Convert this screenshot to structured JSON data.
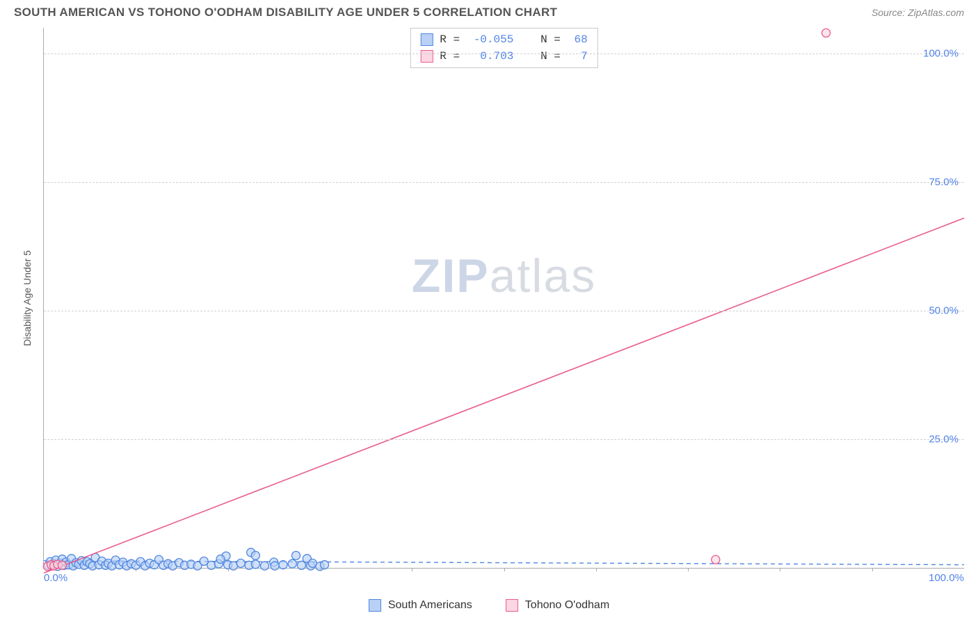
{
  "header": {
    "title": "SOUTH AMERICAN VS TOHONO O'ODHAM DISABILITY AGE UNDER 5 CORRELATION CHART",
    "source_prefix": "Source: ",
    "source_name": "ZipAtlas.com"
  },
  "chart": {
    "type": "scatter",
    "y_axis_title": "Disability Age Under 5",
    "xlim": [
      0,
      100
    ],
    "ylim": [
      0,
      105
    ],
    "x_origin_label": "0.0%",
    "x_end_label": "100.0%",
    "y_ticks": [
      {
        "v": 25,
        "label": "25.0%"
      },
      {
        "v": 50,
        "label": "50.0%"
      },
      {
        "v": 75,
        "label": "75.0%"
      },
      {
        "v": 100,
        "label": "100.0%"
      }
    ],
    "x_minor_ticks": [
      10,
      20,
      30,
      40,
      50,
      60,
      70,
      80,
      90
    ],
    "grid_color": "#d0d0d0",
    "background_color": "#ffffff",
    "axis_color": "#aaaaaa",
    "tick_label_color": "#5083e8",
    "tick_label_fontsize": 15,
    "marker_radius": 6,
    "marker_stroke_width": 1.3,
    "series": [
      {
        "name": "South Americans",
        "fill": "#b9d1f6",
        "stroke": "#4f86e0",
        "fit": {
          "x1": 0,
          "y1": 1.4,
          "x2": 100,
          "y2": 0.6,
          "dash": "6 5",
          "width": 1.4
        },
        "points": [
          [
            0.5,
            0.5
          ],
          [
            0.7,
            1.2
          ],
          [
            0.9,
            0.4
          ],
          [
            1.1,
            0.8
          ],
          [
            1.3,
            1.5
          ],
          [
            1.5,
            0.3
          ],
          [
            1.8,
            0.9
          ],
          [
            2.0,
            1.7
          ],
          [
            2.2,
            0.5
          ],
          [
            2.4,
            1.1
          ],
          [
            2.7,
            0.6
          ],
          [
            3.0,
            1.8
          ],
          [
            3.2,
            0.4
          ],
          [
            3.5,
            1.0
          ],
          [
            3.8,
            0.7
          ],
          [
            4.1,
            1.4
          ],
          [
            4.4,
            0.5
          ],
          [
            4.7,
            1.2
          ],
          [
            5.0,
            0.8
          ],
          [
            5.3,
            0.4
          ],
          [
            5.6,
            2.0
          ],
          [
            6.0,
            0.6
          ],
          [
            6.3,
            1.3
          ],
          [
            6.7,
            0.5
          ],
          [
            7.0,
            0.9
          ],
          [
            7.4,
            0.4
          ],
          [
            7.8,
            1.5
          ],
          [
            8.2,
            0.6
          ],
          [
            8.6,
            1.1
          ],
          [
            9.0,
            0.4
          ],
          [
            9.5,
            0.8
          ],
          [
            10.0,
            0.5
          ],
          [
            10.5,
            1.2
          ],
          [
            11.0,
            0.4
          ],
          [
            11.5,
            0.9
          ],
          [
            12.0,
            0.6
          ],
          [
            12.5,
            1.6
          ],
          [
            13.0,
            0.5
          ],
          [
            13.5,
            0.8
          ],
          [
            14.0,
            0.4
          ],
          [
            14.7,
            1.0
          ],
          [
            15.3,
            0.5
          ],
          [
            16.0,
            0.7
          ],
          [
            16.7,
            0.4
          ],
          [
            17.4,
            1.3
          ],
          [
            18.2,
            0.5
          ],
          [
            19.0,
            0.8
          ],
          [
            19.8,
            2.3
          ],
          [
            20.0,
            0.6
          ],
          [
            20.6,
            0.4
          ],
          [
            21.4,
            0.9
          ],
          [
            22.3,
            0.5
          ],
          [
            22.5,
            3.0
          ],
          [
            23.0,
            0.7
          ],
          [
            24.0,
            0.4
          ],
          [
            25.0,
            1.1
          ],
          [
            25.1,
            0.4
          ],
          [
            26.0,
            0.6
          ],
          [
            27.0,
            0.8
          ],
          [
            27.4,
            2.4
          ],
          [
            28.0,
            0.5
          ],
          [
            28.6,
            1.8
          ],
          [
            29.0,
            0.4
          ],
          [
            29.2,
            0.9
          ],
          [
            30.0,
            0.3
          ],
          [
            30.5,
            0.6
          ],
          [
            19.2,
            1.7
          ],
          [
            23.0,
            2.4
          ]
        ]
      },
      {
        "name": "Tohono O'odham",
        "fill": "#fcd7e2",
        "stroke": "#e85b8c",
        "fit": {
          "x1": 0,
          "y1": -1.0,
          "x2": 100,
          "y2": 68.0,
          "dash": "",
          "width": 1.6
        },
        "points": [
          [
            0.4,
            0.3
          ],
          [
            0.8,
            0.6
          ],
          [
            1.1,
            0.4
          ],
          [
            1.5,
            0.7
          ],
          [
            2.0,
            0.5
          ],
          [
            73.0,
            1.6
          ],
          [
            85.0,
            104.0
          ]
        ]
      }
    ],
    "stats": [
      {
        "series_index": 0,
        "r": "-0.055",
        "n": "68"
      },
      {
        "series_index": 1,
        "r": " 0.703",
        "n": " 7"
      }
    ],
    "watermark": {
      "zip": "ZIP",
      "atlas": "atlas"
    }
  },
  "legend": {
    "items": [
      {
        "series_index": 0,
        "label": "South Americans"
      },
      {
        "series_index": 1,
        "label": "Tohono O'odham"
      }
    ]
  }
}
